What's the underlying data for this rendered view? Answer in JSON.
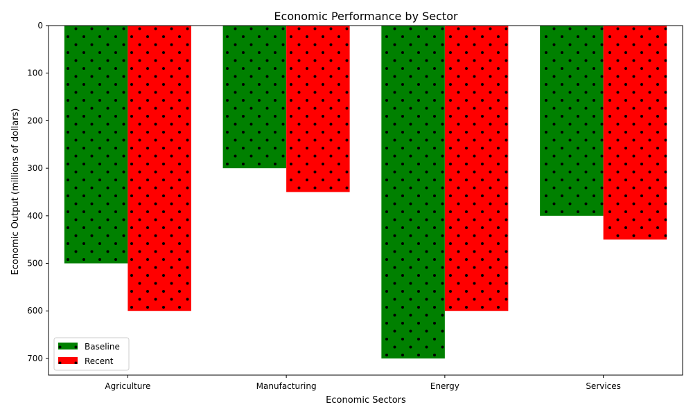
{
  "chart_data": {
    "type": "bar",
    "title": "Economic Performance by Sector",
    "xlabel": "Economic Sectors",
    "ylabel": "Economic Output (millions of dollars)",
    "categories": [
      "Agriculture",
      "Manufacturing",
      "Energy",
      "Services"
    ],
    "series": [
      {
        "name": "Baseline",
        "values": [
          500,
          300,
          700,
          400
        ],
        "color": "#008000"
      },
      {
        "name": "Recent",
        "values": [
          600,
          350,
          600,
          450
        ],
        "color": "#ff0000"
      }
    ],
    "ylim": [
      0,
      735
    ],
    "yticks": [
      0,
      100,
      200,
      300,
      400,
      500,
      600,
      700
    ],
    "y_axis_inverted": true,
    "bar_pattern": "dots",
    "grid": false,
    "legend_position": "lower-left"
  }
}
